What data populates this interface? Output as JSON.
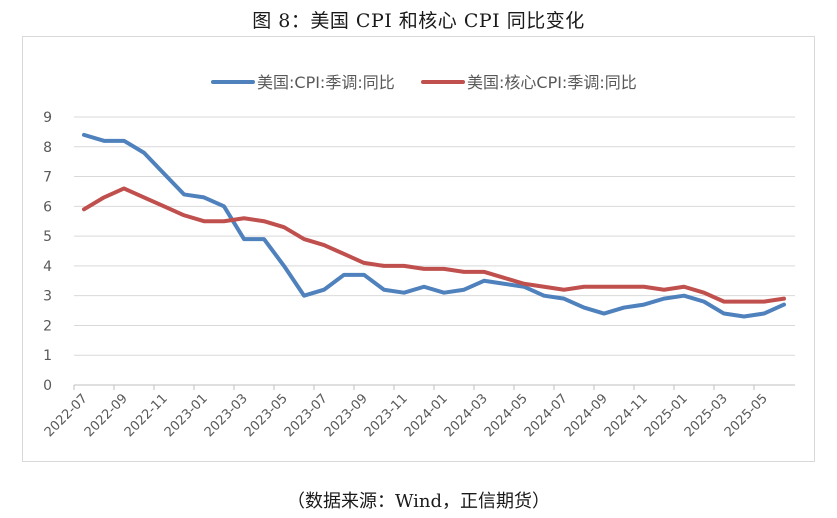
{
  "figure": {
    "title": "图 8：美国 CPI 和核心 CPI 同比变化",
    "source": "（数据来源：Wind，正信期货）"
  },
  "chart_data": {
    "type": "line",
    "x": [
      "2022-07",
      "2022-08",
      "2022-09",
      "2022-10",
      "2022-11",
      "2022-12",
      "2023-01",
      "2023-02",
      "2023-03",
      "2023-04",
      "2023-05",
      "2023-06",
      "2023-07",
      "2023-08",
      "2023-09",
      "2023-10",
      "2023-11",
      "2023-12",
      "2024-01",
      "2024-02",
      "2024-03",
      "2024-04",
      "2024-05",
      "2024-06",
      "2024-07",
      "2024-08",
      "2024-09",
      "2024-10",
      "2024-11",
      "2024-12",
      "2025-01",
      "2025-02",
      "2025-03",
      "2025-04",
      "2025-05",
      "2025-06"
    ],
    "xticks": [
      "2022-07",
      "2022-09",
      "2022-11",
      "2023-01",
      "2023-03",
      "2023-05",
      "2023-07",
      "2023-09",
      "2023-11",
      "2024-01",
      "2024-03",
      "2024-05",
      "2024-07",
      "2024-09",
      "2024-11",
      "2025-01",
      "2025-03",
      "2025-05"
    ],
    "yticks": [
      "0",
      "1",
      "2",
      "3",
      "4",
      "5",
      "6",
      "7",
      "8",
      "9"
    ],
    "ylim": [
      0,
      9
    ],
    "grid": true,
    "legend_position": "top",
    "series": [
      {
        "name": "美国:CPI:季调:同比",
        "color": "#4f81bd",
        "values": [
          8.4,
          8.2,
          8.2,
          7.8,
          7.1,
          6.4,
          6.3,
          6.0,
          4.9,
          4.9,
          4.0,
          3.0,
          3.2,
          3.7,
          3.7,
          3.2,
          3.1,
          3.3,
          3.1,
          3.2,
          3.5,
          3.4,
          3.3,
          3.0,
          2.9,
          2.6,
          2.4,
          2.6,
          2.7,
          2.9,
          3.0,
          2.8,
          2.4,
          2.3,
          2.4,
          2.7
        ]
      },
      {
        "name": "美国:核心CPI:季调:同比",
        "color": "#c0504d",
        "values": [
          5.9,
          6.3,
          6.6,
          6.3,
          6.0,
          5.7,
          5.5,
          5.5,
          5.6,
          5.5,
          5.3,
          4.9,
          4.7,
          4.4,
          4.1,
          4.0,
          4.0,
          3.9,
          3.9,
          3.8,
          3.8,
          3.6,
          3.4,
          3.3,
          3.2,
          3.3,
          3.3,
          3.3,
          3.3,
          3.2,
          3.3,
          3.1,
          2.8,
          2.8,
          2.8,
          2.9
        ]
      }
    ]
  }
}
